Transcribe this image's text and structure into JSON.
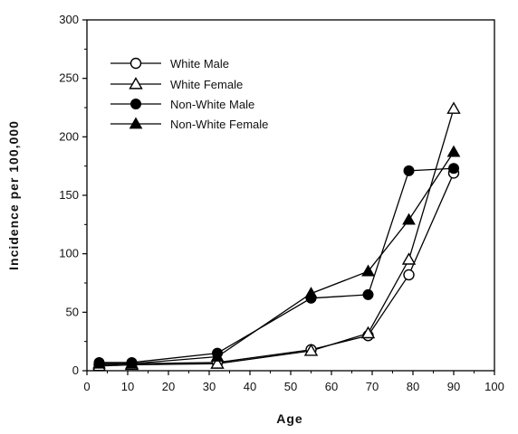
{
  "chart_data": {
    "type": "line",
    "title": "",
    "xlabel": "Age",
    "ylabel": "Incidence  per  100,000",
    "xlim": [
      0,
      100
    ],
    "ylim": [
      0,
      300
    ],
    "xticks": [
      0,
      10,
      20,
      30,
      40,
      50,
      60,
      70,
      80,
      90,
      100
    ],
    "yticks": [
      0,
      50,
      100,
      150,
      200,
      250,
      300
    ],
    "grid": false,
    "legend_position": "top-left",
    "series": [
      {
        "name": "White Male",
        "marker": "open-circle",
        "color": "#000000",
        "x": [
          3,
          11,
          32,
          55,
          69,
          79,
          90
        ],
        "y": [
          5,
          6,
          7,
          18,
          30,
          82,
          169
        ]
      },
      {
        "name": "White Female",
        "marker": "open-triangle",
        "color": "#000000",
        "x": [
          3,
          11,
          32,
          55,
          69,
          79,
          90
        ],
        "y": [
          4,
          5,
          6,
          17,
          32,
          95,
          224
        ]
      },
      {
        "name": "Non-White Male",
        "marker": "filled-circle",
        "color": "#000000",
        "x": [
          3,
          11,
          32,
          55,
          69,
          79,
          90
        ],
        "y": [
          7,
          7,
          15,
          62,
          65,
          171,
          173
        ]
      },
      {
        "name": "Non-White Female",
        "marker": "filled-triangle",
        "color": "#000000",
        "x": [
          3,
          11,
          32,
          55,
          69,
          79,
          90
        ],
        "y": [
          6,
          6,
          12,
          66,
          85,
          129,
          187
        ]
      }
    ]
  }
}
